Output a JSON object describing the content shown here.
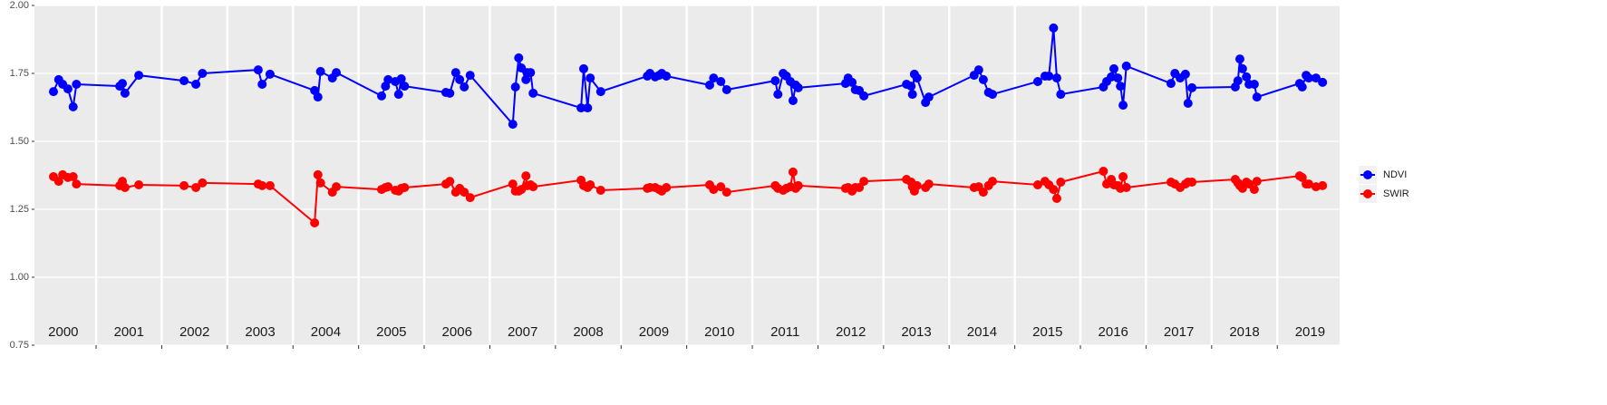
{
  "chart_data": {
    "type": "line",
    "x": [
      2000.35,
      2000.43,
      2000.49,
      2000.57,
      2000.65,
      2000.7,
      2001.36,
      2001.4,
      2001.44,
      2001.65,
      2002.34,
      2002.52,
      2002.62,
      2003.47,
      2003.53,
      2003.65,
      2004.33,
      2004.38,
      2004.42,
      2004.6,
      2004.66,
      2005.35,
      2005.41,
      2005.45,
      2005.56,
      2005.61,
      2005.65,
      2005.7,
      2006.33,
      2006.39,
      2006.48,
      2006.54,
      2006.61,
      2006.7,
      2007.35,
      2007.39,
      2007.44,
      2007.48,
      2007.55,
      2007.57,
      2007.62,
      2007.66,
      2008.39,
      2008.43,
      2008.49,
      2008.53,
      2008.69,
      2009.4,
      2009.44,
      2009.52,
      2009.58,
      2009.62,
      2009.69,
      2010.35,
      2010.41,
      2010.52,
      2010.61,
      2011.35,
      2011.39,
      2011.47,
      2011.52,
      2011.58,
      2011.62,
      2011.66,
      2011.7,
      2012.42,
      2012.46,
      2012.52,
      2012.57,
      2012.63,
      2012.7,
      2013.35,
      2013.42,
      2013.44,
      2013.47,
      2013.51,
      2013.64,
      2013.69,
      2014.38,
      2014.45,
      2014.52,
      2014.6,
      2014.66,
      2015.35,
      2015.46,
      2015.52,
      2015.59,
      2015.64,
      2015.7,
      2016.35,
      2016.4,
      2016.47,
      2016.51,
      2016.57,
      2016.61,
      2016.65,
      2016.7,
      2017.38,
      2017.44,
      2017.52,
      2017.6,
      2017.64,
      2017.7,
      2018.36,
      2018.4,
      2018.43,
      2018.47,
      2018.53,
      2018.57,
      2018.65,
      2018.69,
      2019.34,
      2019.38,
      2019.44,
      2019.48,
      2019.59,
      2019.69
    ],
    "series": [
      {
        "name": "NDVI",
        "color": "#0000ff",
        "values": [
          1.683,
          1.727,
          1.71,
          1.693,
          1.627,
          1.71,
          1.703,
          1.713,
          1.677,
          1.743,
          1.723,
          1.71,
          1.75,
          1.763,
          1.71,
          1.747,
          1.687,
          1.663,
          1.757,
          1.733,
          1.753,
          1.667,
          1.703,
          1.727,
          1.72,
          1.673,
          1.73,
          1.703,
          1.68,
          1.677,
          1.753,
          1.727,
          1.7,
          1.743,
          1.563,
          1.7,
          1.807,
          1.77,
          1.727,
          1.753,
          1.753,
          1.677,
          1.623,
          1.767,
          1.623,
          1.733,
          1.683,
          1.74,
          1.75,
          1.737,
          1.743,
          1.75,
          1.74,
          1.707,
          1.733,
          1.72,
          1.69,
          1.723,
          1.673,
          1.75,
          1.74,
          1.72,
          1.65,
          1.707,
          1.697,
          1.713,
          1.733,
          1.717,
          1.69,
          1.687,
          1.667,
          1.71,
          1.703,
          1.673,
          1.747,
          1.733,
          1.643,
          1.663,
          1.743,
          1.763,
          1.727,
          1.68,
          1.673,
          1.72,
          1.74,
          1.74,
          1.917,
          1.733,
          1.673,
          1.7,
          1.72,
          1.737,
          1.767,
          1.733,
          1.703,
          1.633,
          1.777,
          1.713,
          1.75,
          1.733,
          1.747,
          1.64,
          1.697,
          1.7,
          1.723,
          1.803,
          1.767,
          1.737,
          1.71,
          1.71,
          1.663,
          1.713,
          1.7,
          1.743,
          1.733,
          1.733,
          1.717
        ]
      },
      {
        "name": "SWIR",
        "color": "#ff0000",
        "values": [
          1.37,
          1.353,
          1.377,
          1.367,
          1.37,
          1.343,
          1.337,
          1.353,
          1.33,
          1.34,
          1.337,
          1.33,
          1.347,
          1.343,
          1.337,
          1.337,
          1.2,
          1.377,
          1.347,
          1.313,
          1.333,
          1.323,
          1.33,
          1.333,
          1.32,
          1.317,
          1.327,
          1.33,
          1.343,
          1.353,
          1.313,
          1.327,
          1.313,
          1.293,
          1.343,
          1.317,
          1.317,
          1.323,
          1.373,
          1.337,
          1.34,
          1.333,
          1.357,
          1.337,
          1.33,
          1.34,
          1.32,
          1.327,
          1.33,
          1.33,
          1.323,
          1.317,
          1.33,
          1.34,
          1.323,
          1.333,
          1.313,
          1.337,
          1.327,
          1.32,
          1.327,
          1.333,
          1.387,
          1.327,
          1.337,
          1.327,
          1.33,
          1.317,
          1.33,
          1.33,
          1.353,
          1.36,
          1.35,
          1.333,
          1.317,
          1.337,
          1.33,
          1.343,
          1.33,
          1.333,
          1.313,
          1.337,
          1.353,
          1.34,
          1.353,
          1.34,
          1.323,
          1.29,
          1.35,
          1.39,
          1.343,
          1.36,
          1.34,
          1.337,
          1.327,
          1.37,
          1.33,
          1.35,
          1.343,
          1.33,
          1.343,
          1.35,
          1.35,
          1.36,
          1.347,
          1.337,
          1.327,
          1.35,
          1.343,
          1.323,
          1.353,
          1.373,
          1.367,
          1.343,
          1.343,
          1.333,
          1.337
        ]
      }
    ],
    "xlim": [
      2000.06,
      2019.95
    ],
    "xticks": [
      2001,
      2002,
      2003,
      2004,
      2005,
      2006,
      2007,
      2008,
      2009,
      2010,
      2011,
      2012,
      2013,
      2014,
      2015,
      2016,
      2017,
      2018,
      2019
    ],
    "year_labels": [
      2000,
      2001,
      2002,
      2003,
      2004,
      2005,
      2006,
      2007,
      2008,
      2009,
      2010,
      2011,
      2012,
      2013,
      2014,
      2015,
      2016,
      2017,
      2018,
      2019
    ],
    "ylim": [
      0.75,
      2.0
    ],
    "yticks": [
      {
        "value": 0.75,
        "label": "0.75"
      },
      {
        "value": 1.0,
        "label": "1.00"
      },
      {
        "value": 1.25,
        "label": "1.25"
      },
      {
        "value": 1.5,
        "label": "1.50"
      },
      {
        "value": 1.75,
        "label": "1.75"
      },
      {
        "value": 2.0,
        "label": "2.00"
      }
    ],
    "grid": true,
    "legend": "right"
  }
}
